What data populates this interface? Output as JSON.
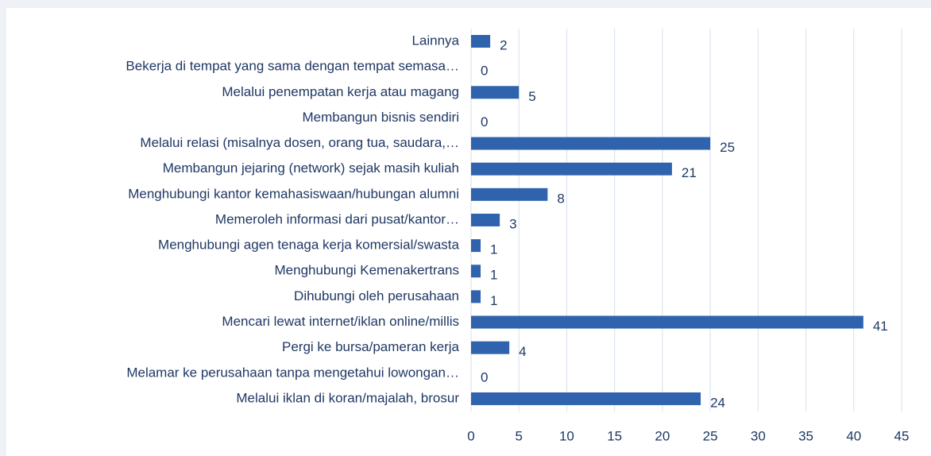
{
  "chart_data": {
    "type": "bar",
    "orientation": "horizontal",
    "categories": [
      "Lainnya",
      "Bekerja di tempat yang sama dengan tempat semasa…",
      "Melalui penempatan kerja atau magang",
      "Membangun bisnis sendiri",
      "Melalui relasi (misalnya dosen, orang tua, saudara,…",
      "Membangun jejaring (network) sejak masih kuliah",
      "Menghubungi kantor kemahasiswaan/hubungan alumni",
      "Memeroleh informasi dari pusat/kantor…",
      "Menghubungi agen tenaga kerja komersial/swasta",
      "Menghubungi Kemenakertrans",
      "Dihubungi oleh perusahaan",
      "Mencari lewat internet/iklan online/millis",
      "Pergi ke bursa/pameran kerja",
      "Melamar ke perusahaan tanpa mengetahui lowongan…",
      "Melalui iklan di koran/majalah, brosur"
    ],
    "values": [
      2,
      0,
      5,
      0,
      25,
      21,
      8,
      3,
      1,
      1,
      1,
      41,
      4,
      0,
      24
    ],
    "color": "#3063ad",
    "xlim": [
      0,
      45
    ],
    "xticks": [
      0,
      5,
      10,
      15,
      20,
      25,
      30,
      35,
      40,
      45
    ],
    "grid": true
  }
}
